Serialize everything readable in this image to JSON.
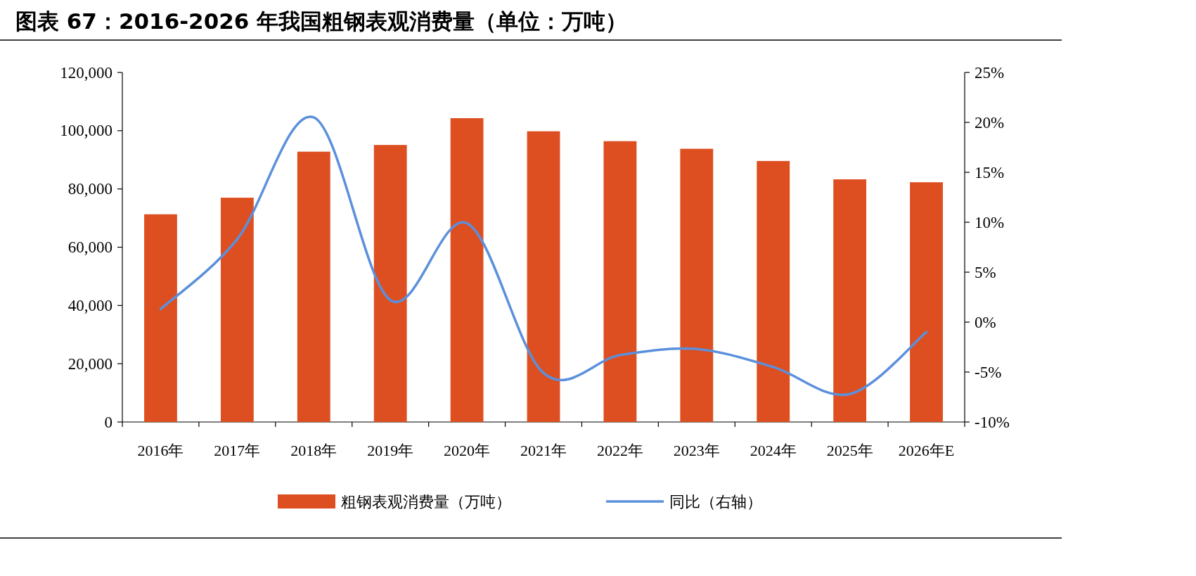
{
  "chart_data": {
    "type": "bar",
    "title": "图表 67：2016-2026 年我国粗钢表观消费量（单位：万吨）",
    "categories": [
      "2016年",
      "2017年",
      "2018年",
      "2019年",
      "2020年",
      "2021年",
      "2022年",
      "2023年",
      "2024年",
      "2025年",
      "2026年E"
    ],
    "series": [
      {
        "name": "粗钢表观消费量（万吨）",
        "color": "#dd4f21",
        "values": [
          71300,
          77000,
          92800,
          95100,
          104300,
          99800,
          96400,
          93800,
          89600,
          83300,
          82300
        ]
      },
      {
        "name": "同比（右轴）",
        "type": "line",
        "axis": "y2",
        "color": "#5b90dc",
        "values": [
          1.3,
          8.3,
          20.5,
          2.2,
          9.9,
          -5.1,
          -3.3,
          -2.7,
          -4.5,
          -7.2,
          -1.0
        ]
      }
    ],
    "ylim": [
      0,
      120000
    ],
    "yticks": [
      {
        "value": 0,
        "label": "0"
      },
      {
        "value": 20000,
        "label": "20,000"
      },
      {
        "value": 40000,
        "label": "40,000"
      },
      {
        "value": 60000,
        "label": "60,000"
      },
      {
        "value": 80000,
        "label": "80,000"
      },
      {
        "value": 100000,
        "label": "100,000"
      },
      {
        "value": 120000,
        "label": "120,000"
      }
    ],
    "y2lim": [
      -10,
      25
    ],
    "y2ticks": [
      {
        "value": -10,
        "label": "-10%"
      },
      {
        "value": -5,
        "label": "-5%"
      },
      {
        "value": 0,
        "label": "0%"
      },
      {
        "value": 5,
        "label": "5%"
      },
      {
        "value": 10,
        "label": "10%"
      },
      {
        "value": 15,
        "label": "15%"
      },
      {
        "value": 20,
        "label": "20%"
      },
      {
        "value": 25,
        "label": "25%"
      }
    ],
    "legend": "bottom"
  }
}
